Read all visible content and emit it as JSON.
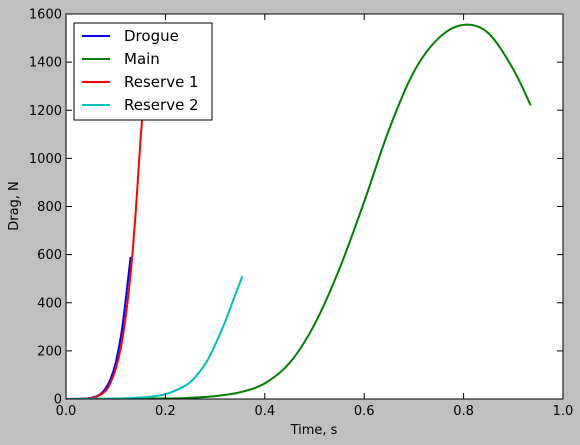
{
  "chart_data": {
    "type": "line",
    "xlabel": "Time, s",
    "ylabel": "Drag, N",
    "xlim": [
      0.0,
      1.0
    ],
    "ylim": [
      0,
      1600
    ],
    "x_ticks": [
      0.0,
      0.2,
      0.4,
      0.6,
      0.8,
      1.0
    ],
    "x_tick_labels": [
      "0.0",
      "0.2",
      "0.4",
      "0.6",
      "0.8",
      "1.0"
    ],
    "y_ticks": [
      0,
      200,
      400,
      600,
      800,
      1000,
      1200,
      1400,
      1600
    ],
    "y_tick_labels": [
      "0",
      "200",
      "400",
      "600",
      "800",
      "1000",
      "1200",
      "1400",
      "1600"
    ],
    "grid": false,
    "legend_position": "top-left",
    "series": [
      {
        "name": "Drogue",
        "color": "#0000ff",
        "x": [
          0.0,
          0.04,
          0.06,
          0.07,
          0.08,
          0.09,
          0.1,
          0.11,
          0.115,
          0.12,
          0.125,
          0.13
        ],
        "y": [
          0,
          2,
          10,
          22,
          45,
          85,
          150,
          255,
          325,
          410,
          500,
          590
        ]
      },
      {
        "name": "Main",
        "color": "#008000",
        "x": [
          0.0,
          0.2,
          0.25,
          0.3,
          0.35,
          0.4,
          0.45,
          0.5,
          0.55,
          0.6,
          0.65,
          0.7,
          0.75,
          0.8,
          0.85,
          0.9,
          0.935
        ],
        "y": [
          0,
          2,
          5,
          12,
          28,
          65,
          150,
          310,
          540,
          820,
          1120,
          1360,
          1500,
          1555,
          1520,
          1370,
          1220
        ]
      },
      {
        "name": "Reserve 1",
        "color": "#ff0000",
        "x": [
          0.0,
          0.04,
          0.06,
          0.08,
          0.09,
          0.1,
          0.11,
          0.12,
          0.13,
          0.14,
          0.15,
          0.155
        ],
        "y": [
          0,
          2,
          8,
          35,
          70,
          125,
          210,
          340,
          520,
          770,
          1080,
          1200
        ]
      },
      {
        "name": "Reserve 2",
        "color": "#00bfbf",
        "x": [
          0.0,
          0.1,
          0.15,
          0.18,
          0.2,
          0.22,
          0.25,
          0.28,
          0.3,
          0.32,
          0.34,
          0.355
        ],
        "y": [
          0,
          2,
          6,
          12,
          20,
          35,
          70,
          145,
          225,
          320,
          430,
          510
        ]
      }
    ]
  }
}
